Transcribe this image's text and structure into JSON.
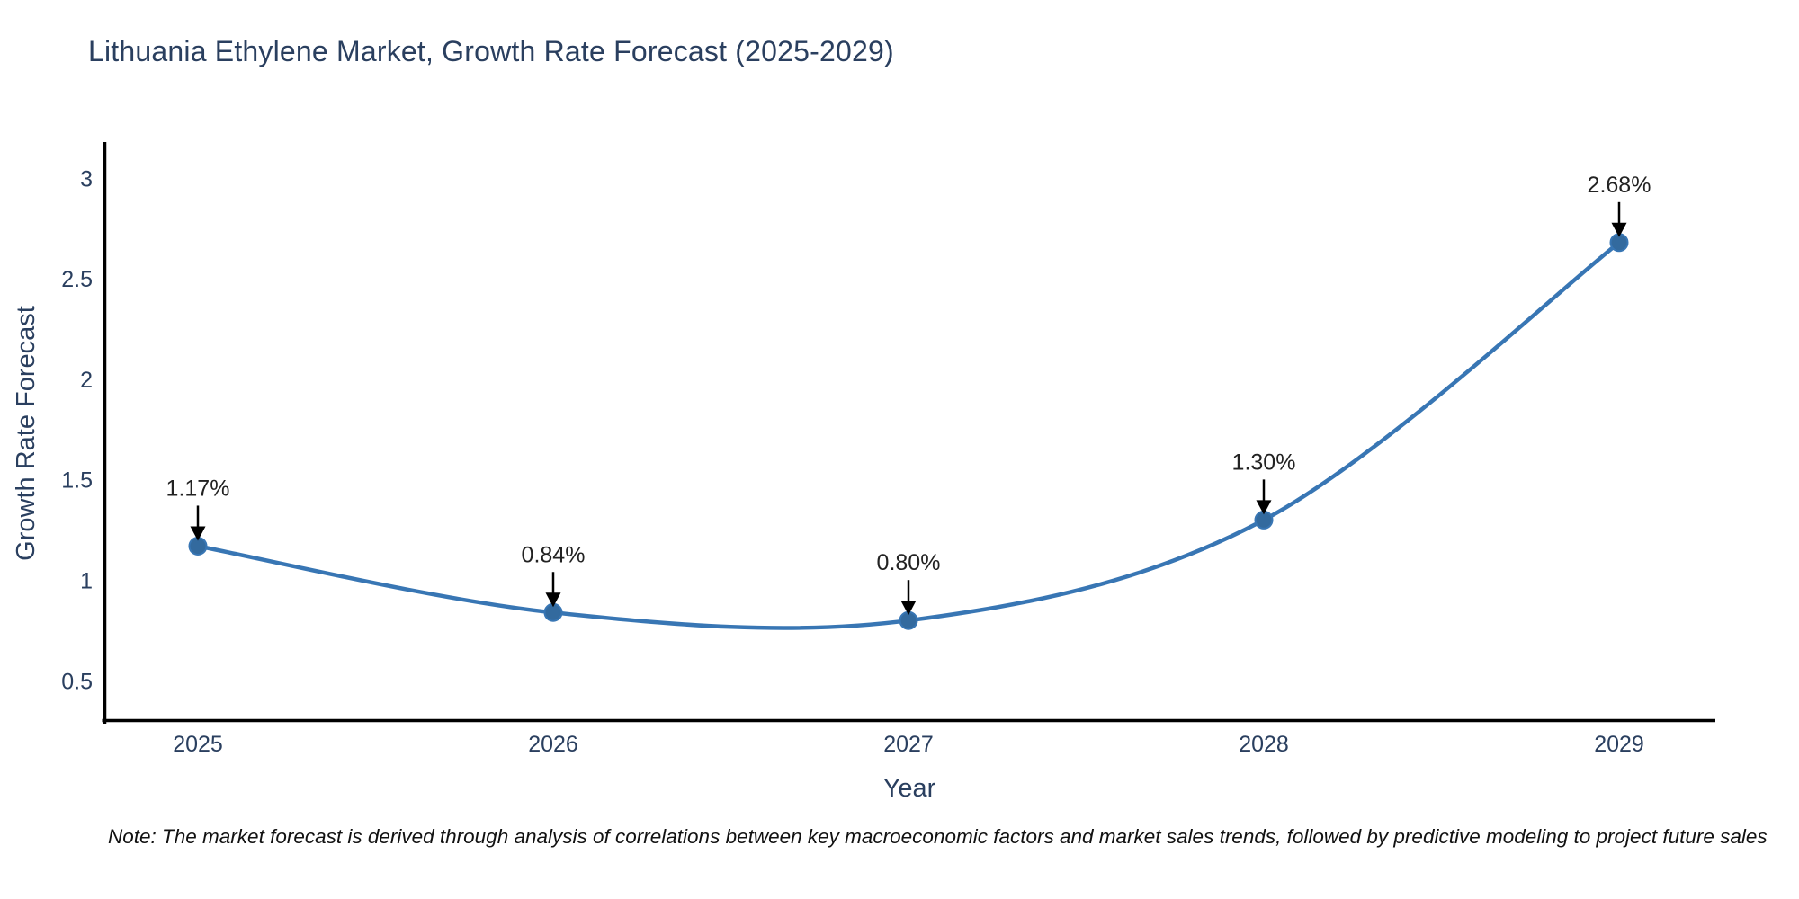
{
  "title": "Lithuania Ethylene Market, Growth Rate Forecast (2025-2029)",
  "note": "Note: The market forecast is derived through analysis of correlations between key macroeconomic factors and market sales trends, followed by predictive modeling to project future sales",
  "chart_data": {
    "type": "line",
    "title": "Lithuania Ethylene Market, Growth Rate Forecast (2025-2029)",
    "xlabel": "Year",
    "ylabel": "Growth Rate Forecast",
    "categories": [
      "2025",
      "2026",
      "2027",
      "2028",
      "2029"
    ],
    "series": [
      {
        "name": "Growth Rate Forecast",
        "values": [
          1.17,
          0.84,
          0.8,
          1.3,
          2.68
        ],
        "point_labels": [
          "1.17%",
          "0.84%",
          "0.80%",
          "1.30%",
          "2.68%"
        ]
      }
    ],
    "curve": "spline",
    "markers": true,
    "annotations_arrows": true,
    "y_ticks": [
      3,
      2.5,
      2,
      1.5,
      1,
      0.5
    ],
    "y_tick_labels": [
      "3",
      "2.5",
      "2",
      "1.5",
      "1",
      "0.5"
    ],
    "ylim": [
      0.3,
      3.18
    ],
    "grid": false,
    "legend_position": "none",
    "colors": {
      "line": "#3876b4",
      "marker": "#336a9e",
      "axis": "#000000",
      "axis_text": "#2a3f5f",
      "annotation_text": "#222222",
      "arrow": "#000000",
      "background": "#ffffff"
    }
  }
}
